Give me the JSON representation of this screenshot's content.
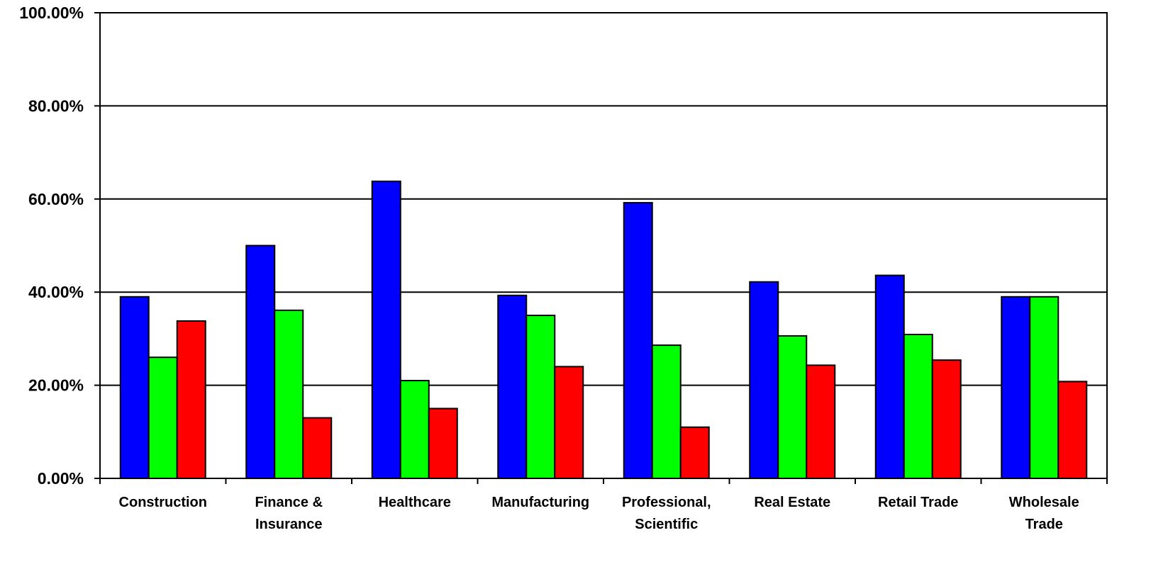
{
  "chart_data": {
    "type": "bar",
    "categories": [
      [
        "Construction"
      ],
      [
        "Finance &",
        "Insurance"
      ],
      [
        "Healthcare"
      ],
      [
        "Manufacturing"
      ],
      [
        "Professional,",
        "Scientific"
      ],
      [
        "Real Estate"
      ],
      [
        "Retail Trade"
      ],
      [
        "Wholesale",
        "Trade"
      ]
    ],
    "series": [
      {
        "color": "#0000FF",
        "values": [
          39.0,
          50.0,
          63.8,
          39.3,
          59.2,
          42.2,
          43.6,
          39.0
        ]
      },
      {
        "color": "#00FF00",
        "values": [
          26.0,
          36.1,
          21.0,
          35.0,
          28.6,
          30.6,
          30.9,
          39.0
        ]
      },
      {
        "color": "#FF0000",
        "values": [
          33.8,
          13.0,
          15.0,
          24.0,
          11.0,
          24.3,
          25.4,
          20.8
        ]
      }
    ],
    "y_ticks": [
      "0.00%",
      "20.00%",
      "40.00%",
      "60.00%",
      "80.00%",
      "100.00%"
    ],
    "ylim": [
      0,
      100
    ],
    "grid": true,
    "legend": "none"
  }
}
